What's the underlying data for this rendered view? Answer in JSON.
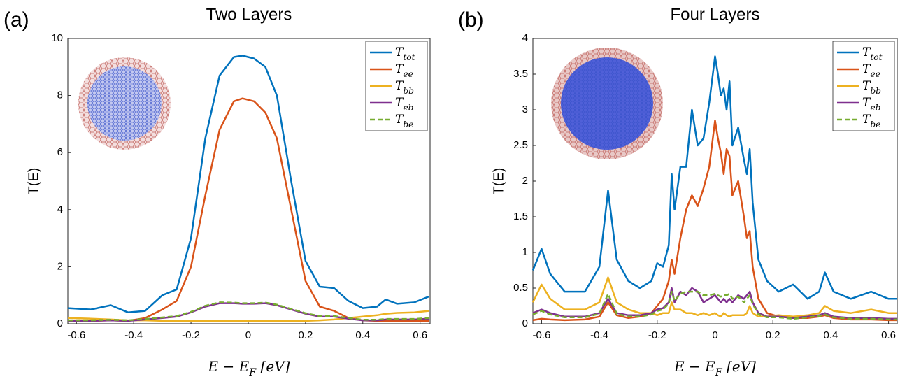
{
  "chart_data": [
    {
      "type": "line",
      "panel_label": "(a)",
      "title": "Two Layers",
      "x_label": "E − EF [eV]",
      "y_label": "T(E)",
      "xlim": [
        -0.63,
        0.635
      ],
      "ylim": [
        0,
        10
      ],
      "xticks": [
        -0.6,
        -0.4,
        -0.2,
        0,
        0.2,
        0.4,
        0.6
      ],
      "yticks": [
        0,
        2,
        4,
        6,
        8,
        10
      ],
      "x": [
        -0.63,
        -0.55,
        -0.48,
        -0.42,
        -0.36,
        -0.3,
        -0.25,
        -0.2,
        -0.15,
        -0.1,
        -0.05,
        -0.02,
        0.02,
        0.06,
        0.1,
        0.15,
        0.2,
        0.25,
        0.3,
        0.35,
        0.4,
        0.45,
        0.48,
        0.52,
        0.58,
        0.63
      ],
      "series": [
        {
          "name": "Ttot",
          "color": "#0072bd",
          "dash": false,
          "values": [
            0.55,
            0.5,
            0.65,
            0.4,
            0.45,
            1.0,
            1.2,
            3.0,
            6.5,
            8.7,
            9.35,
            9.4,
            9.3,
            9.0,
            8.0,
            5.0,
            2.2,
            1.3,
            1.25,
            0.8,
            0.55,
            0.6,
            0.85,
            0.7,
            0.75,
            0.95
          ]
        },
        {
          "name": "Tee",
          "color": "#d95319",
          "dash": false,
          "values": [
            0.1,
            0.1,
            0.12,
            0.1,
            0.2,
            0.5,
            0.8,
            2.0,
            4.5,
            6.8,
            7.8,
            7.9,
            7.8,
            7.4,
            6.5,
            4.0,
            1.5,
            0.6,
            0.45,
            0.2,
            0.12,
            0.1,
            0.1,
            0.1,
            0.1,
            0.1
          ]
        },
        {
          "name": "Tbb",
          "color": "#edb120",
          "dash": false,
          "values": [
            0.2,
            0.18,
            0.15,
            0.12,
            0.12,
            0.1,
            0.1,
            0.1,
            0.1,
            0.1,
            0.1,
            0.1,
            0.1,
            0.1,
            0.1,
            0.1,
            0.1,
            0.12,
            0.15,
            0.2,
            0.25,
            0.3,
            0.35,
            0.38,
            0.4,
            0.45
          ]
        },
        {
          "name": "Teb",
          "color": "#7e2f8e",
          "dash": false,
          "values": [
            0.1,
            0.1,
            0.12,
            0.1,
            0.15,
            0.2,
            0.25,
            0.4,
            0.6,
            0.72,
            0.72,
            0.7,
            0.7,
            0.72,
            0.65,
            0.5,
            0.35,
            0.25,
            0.25,
            0.18,
            0.12,
            0.12,
            0.15,
            0.15,
            0.15,
            0.18
          ]
        },
        {
          "name": "Tbe",
          "color": "#77ac30",
          "dash": true,
          "values": [
            0.12,
            0.12,
            0.14,
            0.12,
            0.17,
            0.22,
            0.27,
            0.42,
            0.63,
            0.75,
            0.74,
            0.72,
            0.72,
            0.74,
            0.67,
            0.52,
            0.37,
            0.27,
            0.27,
            0.2,
            0.14,
            0.14,
            0.17,
            0.17,
            0.17,
            0.2
          ]
        }
      ]
    },
    {
      "type": "line",
      "panel_label": "(b)",
      "title": "Four Layers",
      "x_label": "E − EF [eV]",
      "y_label": "T(E)",
      "xlim": [
        -0.63,
        0.63
      ],
      "ylim": [
        0,
        4
      ],
      "xticks": [
        -0.6,
        -0.4,
        -0.2,
        0,
        0.2,
        0.4,
        0.6
      ],
      "yticks": [
        0,
        0.5,
        1,
        1.5,
        2,
        2.5,
        3,
        3.5,
        4
      ],
      "x": [
        -0.63,
        -0.6,
        -0.57,
        -0.52,
        -0.45,
        -0.4,
        -0.37,
        -0.34,
        -0.3,
        -0.26,
        -0.22,
        -0.2,
        -0.18,
        -0.16,
        -0.15,
        -0.14,
        -0.12,
        -0.1,
        -0.08,
        -0.06,
        -0.04,
        -0.02,
        0,
        0.01,
        0.02,
        0.03,
        0.04,
        0.05,
        0.06,
        0.08,
        0.1,
        0.11,
        0.12,
        0.13,
        0.15,
        0.18,
        0.22,
        0.27,
        0.32,
        0.36,
        0.38,
        0.41,
        0.47,
        0.54,
        0.6,
        0.63
      ],
      "series": [
        {
          "name": "Ttot",
          "color": "#0072bd",
          "dash": false,
          "values": [
            0.75,
            1.05,
            0.7,
            0.45,
            0.45,
            0.8,
            1.87,
            0.9,
            0.6,
            0.5,
            0.6,
            0.85,
            0.8,
            1.1,
            2.1,
            1.6,
            2.2,
            2.2,
            3.0,
            2.5,
            2.6,
            3.1,
            3.75,
            3.5,
            3.2,
            3.3,
            3.0,
            3.4,
            2.5,
            2.75,
            2.3,
            2.1,
            2.45,
            1.7,
            0.9,
            0.6,
            0.45,
            0.55,
            0.35,
            0.45,
            0.72,
            0.45,
            0.35,
            0.45,
            0.35,
            0.35
          ]
        },
        {
          "name": "Tee",
          "color": "#d95319",
          "dash": false,
          "values": [
            0.05,
            0.07,
            0.06,
            0.05,
            0.06,
            0.1,
            0.3,
            0.12,
            0.08,
            0.1,
            0.15,
            0.25,
            0.35,
            0.6,
            0.9,
            0.7,
            1.2,
            1.6,
            1.8,
            1.65,
            1.9,
            2.2,
            2.85,
            2.6,
            2.4,
            2.1,
            2.45,
            2.35,
            1.8,
            2.0,
            1.5,
            1.2,
            1.3,
            0.8,
            0.35,
            0.15,
            0.1,
            0.08,
            0.08,
            0.1,
            0.12,
            0.08,
            0.06,
            0.06,
            0.05,
            0.05
          ]
        },
        {
          "name": "Tbb",
          "color": "#edb120",
          "dash": false,
          "values": [
            0.3,
            0.55,
            0.35,
            0.2,
            0.2,
            0.3,
            0.65,
            0.3,
            0.2,
            0.15,
            0.15,
            0.12,
            0.15,
            0.15,
            0.3,
            0.2,
            0.2,
            0.15,
            0.15,
            0.12,
            0.15,
            0.12,
            0.15,
            0.12,
            0.1,
            0.15,
            0.12,
            0.1,
            0.12,
            0.12,
            0.12,
            0.15,
            0.25,
            0.15,
            0.1,
            0.1,
            0.12,
            0.1,
            0.12,
            0.15,
            0.25,
            0.18,
            0.15,
            0.2,
            0.15,
            0.15
          ]
        },
        {
          "name": "Teb",
          "color": "#7e2f8e",
          "dash": false,
          "values": [
            0.15,
            0.2,
            0.15,
            0.1,
            0.1,
            0.15,
            0.35,
            0.15,
            0.12,
            0.12,
            0.15,
            0.2,
            0.22,
            0.3,
            0.5,
            0.3,
            0.45,
            0.4,
            0.5,
            0.45,
            0.3,
            0.35,
            0.4,
            0.35,
            0.3,
            0.35,
            0.3,
            0.35,
            0.3,
            0.4,
            0.35,
            0.4,
            0.45,
            0.3,
            0.15,
            0.1,
            0.1,
            0.08,
            0.1,
            0.12,
            0.15,
            0.1,
            0.08,
            0.08,
            0.07,
            0.07
          ]
        },
        {
          "name": "Tbe",
          "color": "#77ac30",
          "dash": true,
          "values": [
            0.13,
            0.18,
            0.13,
            0.09,
            0.09,
            0.14,
            0.42,
            0.14,
            0.1,
            0.1,
            0.13,
            0.18,
            0.2,
            0.28,
            0.45,
            0.32,
            0.42,
            0.45,
            0.45,
            0.45,
            0.4,
            0.4,
            0.42,
            0.4,
            0.38,
            0.4,
            0.4,
            0.42,
            0.35,
            0.38,
            0.3,
            0.35,
            0.4,
            0.28,
            0.13,
            0.09,
            0.09,
            0.07,
            0.09,
            0.11,
            0.13,
            0.09,
            0.07,
            0.07,
            0.06,
            0.06
          ]
        }
      ]
    }
  ]
}
